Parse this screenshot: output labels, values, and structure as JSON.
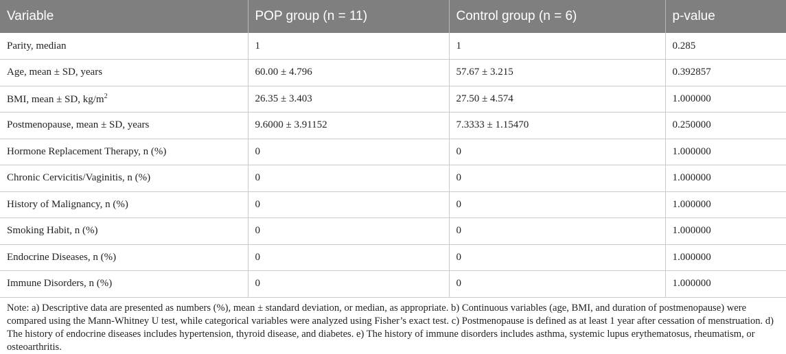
{
  "table": {
    "headers": [
      "Variable",
      "POP group (n = 11)",
      "Control group (n = 6)",
      "p-value"
    ],
    "rows": [
      {
        "variable": "Parity, median",
        "variable_sup": "",
        "variable_suffix": "",
        "pop": "1",
        "control": "1",
        "p": "0.285"
      },
      {
        "variable": "Age, mean ± SD, years",
        "variable_sup": "",
        "variable_suffix": "",
        "pop": "60.00 ± 4.796",
        "control": "57.67 ± 3.215",
        "p": "0.392857"
      },
      {
        "variable": "BMI, mean ± SD, kg/m",
        "variable_sup": "2",
        "variable_suffix": "",
        "pop": "26.35 ± 3.403",
        "control": "27.50 ± 4.574",
        "p": "1.000000"
      },
      {
        "variable": "Postmenopause, mean ± SD, years",
        "variable_sup": "",
        "variable_suffix": "",
        "pop": "9.6000 ± 3.91152",
        "control": "7.3333 ± 1.15470",
        "p": "0.250000"
      },
      {
        "variable": "Hormone Replacement Therapy, n (%)",
        "variable_sup": "",
        "variable_suffix": "",
        "pop": "0",
        "control": "0",
        "p": "1.000000"
      },
      {
        "variable": "Chronic Cervicitis/Vaginitis, n (%)",
        "variable_sup": "",
        "variable_suffix": "",
        "pop": "0",
        "control": "0",
        "p": "1.000000"
      },
      {
        "variable": "History of Malignancy, n (%)",
        "variable_sup": "",
        "variable_suffix": "",
        "pop": "0",
        "control": "0",
        "p": "1.000000"
      },
      {
        "variable": "Smoking Habit, n (%)",
        "variable_sup": "",
        "variable_suffix": "",
        "pop": "0",
        "control": "0",
        "p": "1.000000"
      },
      {
        "variable": "Endocrine Diseases, n (%)",
        "variable_sup": "",
        "variable_suffix": "",
        "pop": "0",
        "control": "0",
        "p": "1.000000"
      },
      {
        "variable": "Immune Disorders, n (%)",
        "variable_sup": "",
        "variable_suffix": "",
        "pop": "0",
        "control": "0",
        "p": "1.000000"
      }
    ]
  },
  "note": "Note: a) Descriptive data are presented as numbers (%), mean ± standard deviation, or median, as appropriate. b) Continuous variables (age, BMI, and duration of postmenopause) were compared using the Mann-Whitney U test, while categorical variables were analyzed using Fisher’s exact test. c) Postmenopause is defined as at least 1 year after cessation of menstruation. d) The history of endocrine diseases includes hypertension, thyroid disease, and diabetes. e) The history of immune disorders includes asthma, systemic lupus erythematosus, rheumatism, or osteoarthritis."
}
